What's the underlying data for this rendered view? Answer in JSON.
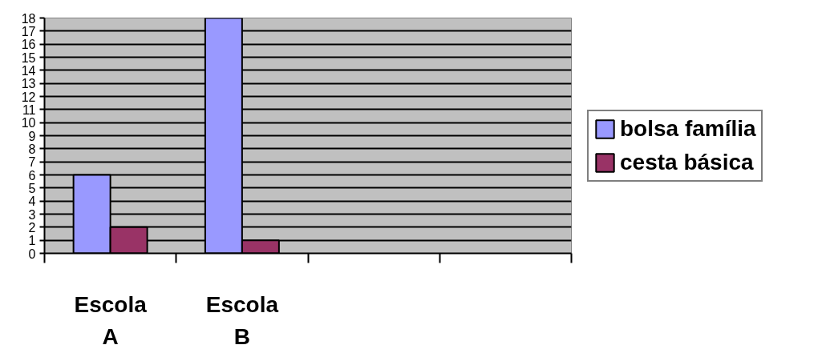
{
  "chart_data": {
    "type": "bar",
    "categories": [
      "Escola A",
      "Escola B",
      null,
      null
    ],
    "series": [
      {
        "name": "bolsa família",
        "color": "#9999ff",
        "values": [
          6,
          18,
          null,
          null
        ]
      },
      {
        "name": "cesta básica",
        "color": "#993366",
        "values": [
          2,
          1,
          null,
          null
        ]
      }
    ],
    "ylim": [
      0,
      18
    ],
    "yticks": [
      0,
      1,
      2,
      3,
      4,
      5,
      6,
      7,
      8,
      9,
      10,
      11,
      12,
      13,
      14,
      15,
      16,
      17,
      18
    ],
    "grid": "y",
    "legend": "right"
  }
}
